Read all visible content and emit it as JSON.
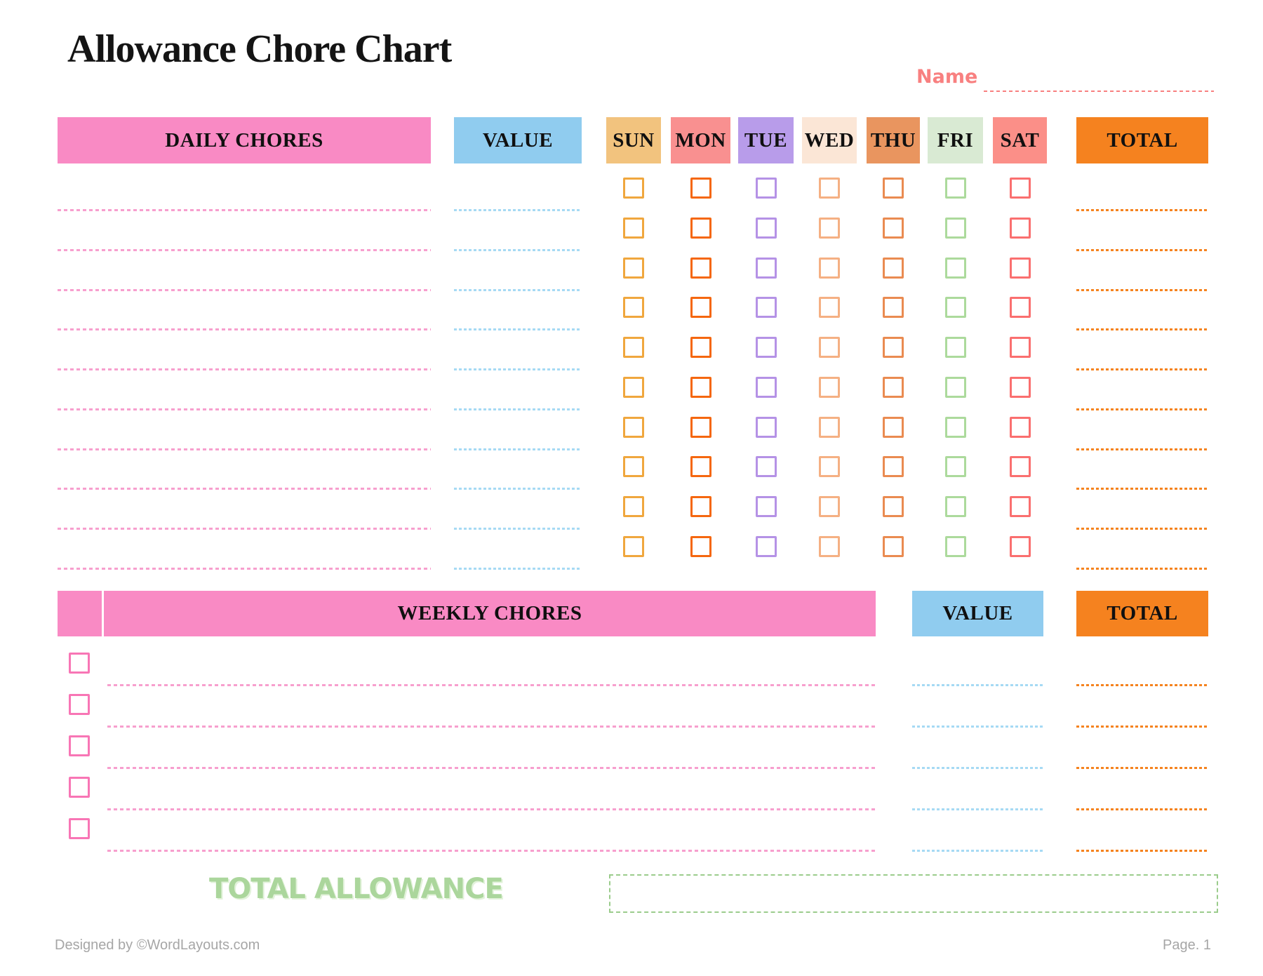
{
  "page": {
    "title": "Allowance Chore Chart",
    "name_label": "Name"
  },
  "daily": {
    "chores_header": "DAILY CHORES",
    "value_header": "VALUE",
    "total_header": "TOTAL",
    "row_count": 10,
    "days": [
      {
        "label": "SUN",
        "header_bg": "#F2C37E",
        "box_border": "#F0A73E"
      },
      {
        "label": "MON",
        "header_bg": "#F99090",
        "box_border": "#F5670F"
      },
      {
        "label": "TUE",
        "header_bg": "#B89CEA",
        "box_border": "#B592E6"
      },
      {
        "label": "WED",
        "header_bg": "#FBE6D6",
        "box_border": "#F5B083"
      },
      {
        "label": "THU",
        "header_bg": "#E9955F",
        "box_border": "#EA8B51"
      },
      {
        "label": "FRI",
        "header_bg": "#D9EAD3",
        "box_border": "#ACDA9C"
      },
      {
        "label": "SAT",
        "header_bg": "#FB8F88",
        "box_border": "#FA6F6F"
      }
    ]
  },
  "weekly": {
    "chores_header": "WEEKLY CHORES",
    "value_header": "VALUE",
    "total_header": "TOTAL",
    "row_count": 5,
    "box_border": "#F876B5"
  },
  "total_allowance_label": "TOTAL ALLOWANCE",
  "footer": {
    "left": "Designed by ©WordLayouts.com",
    "right": "Page. 1"
  },
  "colors": {
    "chores_header_bg": "#F98AC4",
    "value_header_bg": "#90CCEF",
    "total_header_bg": "#F5821F",
    "pink_line": "#F79FCE",
    "blue_line": "#A6DAF4",
    "orange_line": "#F5831F",
    "name_accent": "#F88080",
    "allowance_green": "#ABD69C",
    "allowance_box_border": "#9BCC8C",
    "footer_gray": "#A6A6A6"
  }
}
